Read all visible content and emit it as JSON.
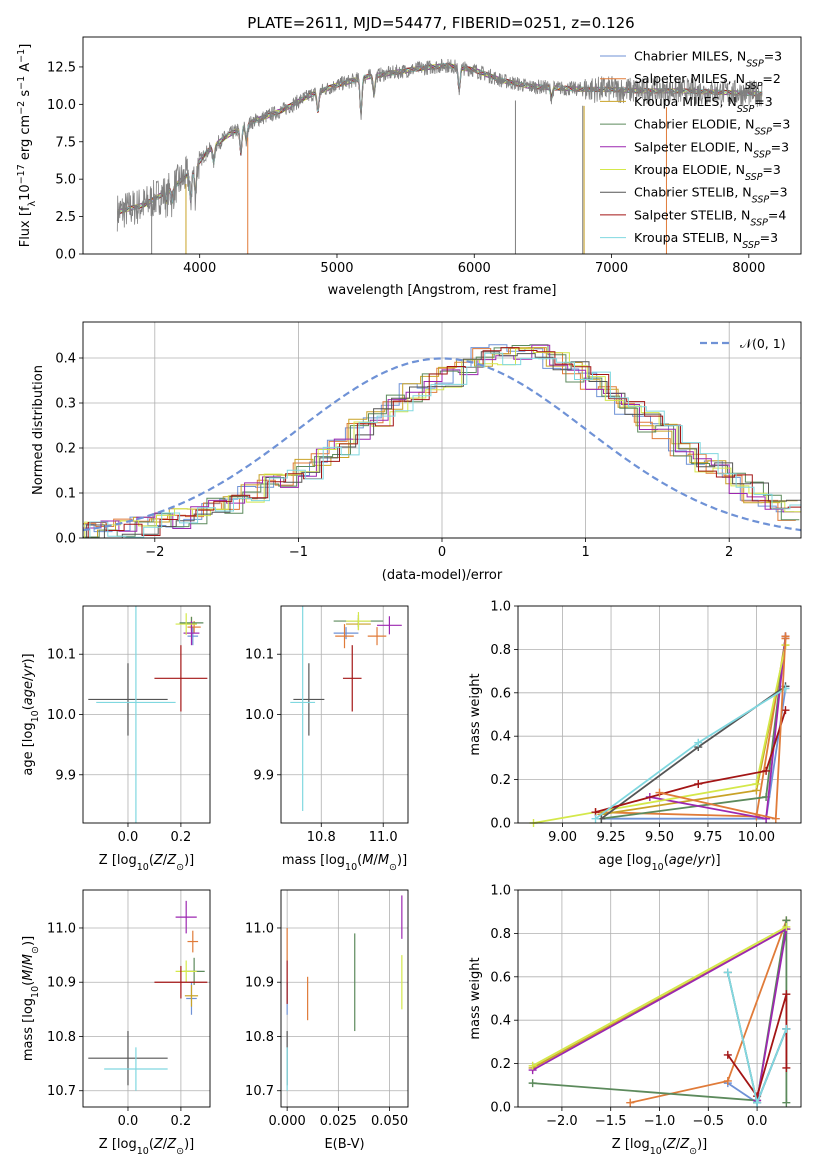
{
  "title": "PLATE=2611, MJD=54477, FIBERID=0251, z=0.126",
  "models": [
    {
      "name": "Chabrier MILES, N$_{SSP}$=3",
      "label_main": "Chabrier MILES, N",
      "label_sub": "SSP",
      "label_tail": "=3",
      "color": "#6f92d6"
    },
    {
      "name": "Salpeter MILES, N$_{SSP}$=2",
      "label_main": "Salpeter MILES, N",
      "label_sub": "SSP",
      "label_tail": "=2",
      "color": "#e07b39"
    },
    {
      "name": "Kroupa MILES, N$_{SSP}$=3",
      "label_main": "Kroupa MILES, N",
      "label_sub": "SSP",
      "label_tail": "=3",
      "color": "#c9a227"
    },
    {
      "name": "Chabrier ELODIE, N$_{SSP}$=3",
      "label_main": "Chabrier ELODIE, N",
      "label_sub": "SSP",
      "label_tail": "=3",
      "color": "#5c8a5c"
    },
    {
      "name": "Salpeter ELODIE, N$_{SSP}$=3",
      "label_main": "Salpeter ELODIE, N",
      "label_sub": "SSP",
      "label_tail": "=3",
      "color": "#9c27b0"
    },
    {
      "name": "Kroupa ELODIE, N$_{SSP}$=3",
      "label_main": "Kroupa ELODIE, N",
      "label_sub": "SSP",
      "label_tail": "=3",
      "color": "#d4e84a"
    },
    {
      "name": "Chabrier STELIB, N$_{SSP}$=3",
      "label_main": "Chabrier STELIB, N",
      "label_sub": "SSP",
      "label_tail": "=3",
      "color": "#555555"
    },
    {
      "name": "Salpeter STELIB, N$_{SSP}$=4",
      "label_main": "Salpeter STELIB, N",
      "label_sub": "SSP",
      "label_tail": "=4",
      "color": "#a31515"
    },
    {
      "name": "Kroupa STELIB, N$_{SSP}$=3",
      "label_main": "Kroupa STELIB, N",
      "label_sub": "SSP",
      "label_tail": "=3",
      "color": "#80d8e0"
    }
  ],
  "chart_data": [
    {
      "id": "spectrum",
      "type": "line",
      "xlabel": "wavelength [Angstrom, rest frame]",
      "ylabel": "Flux [f$_\\lambda$10$^{-17}$ erg cm$^{-2}$ s$^{-1}$ A$^{-1}$]",
      "ylabel_parts": [
        "Flux [f",
        "λ",
        "10",
        "−17",
        " erg cm",
        "−2",
        " s",
        "−1",
        " A",
        "−1",
        "]"
      ],
      "xlim": [
        3150,
        8380
      ],
      "ylim": [
        0,
        14.5
      ],
      "xticks": [
        4000,
        5000,
        6000,
        7000,
        8000
      ],
      "yticks": [
        0.0,
        2.5,
        5.0,
        7.5,
        10.0,
        12.5
      ],
      "data_color": "#808080",
      "continuum": {
        "x": [
          3400,
          3600,
          3800,
          3950,
          4050,
          4200,
          4400,
          4600,
          4800,
          5000,
          5200,
          5400,
          5600,
          5800,
          6000,
          6200,
          6400,
          6600,
          6800,
          7000,
          7200,
          7500,
          7800,
          8100
        ],
        "y": [
          2.8,
          3.3,
          4.4,
          5.6,
          6.8,
          7.9,
          8.9,
          9.6,
          10.6,
          11.3,
          11.8,
          12.1,
          12.4,
          12.6,
          12.3,
          11.6,
          11.2,
          11.1,
          11.0,
          11.0,
          10.9,
          10.9,
          10.8,
          10.7
        ]
      },
      "legend_loc": "upper right",
      "grid": false
    },
    {
      "id": "residuals",
      "type": "histogram",
      "xlabel": "(data-model)/error",
      "ylabel": "Normed distribution",
      "xlim": [
        -2.5,
        2.5
      ],
      "ylim": [
        0,
        0.48
      ],
      "xticks": [
        -2,
        -1,
        0,
        1,
        2
      ],
      "yticks": [
        0.0,
        0.1,
        0.2,
        0.3,
        0.4
      ],
      "bin_edges": [
        -2.5,
        -2.375,
        -2.25,
        -2.125,
        -2.0,
        -1.875,
        -1.75,
        -1.625,
        -1.5,
        -1.375,
        -1.25,
        -1.125,
        -1.0,
        -0.875,
        -0.75,
        -0.625,
        -0.5,
        -0.375,
        -0.25,
        -0.125,
        0.0,
        0.125,
        0.25,
        0.375,
        0.5,
        0.625,
        0.75,
        0.875,
        1.0,
        1.125,
        1.25,
        1.375,
        1.5,
        1.625,
        1.75,
        1.875,
        2.0,
        2.125,
        2.25,
        2.375,
        2.5
      ],
      "hist_reference": [
        0.015,
        0.02,
        0.025,
        0.03,
        0.035,
        0.045,
        0.055,
        0.07,
        0.08,
        0.1,
        0.12,
        0.135,
        0.155,
        0.18,
        0.2,
        0.24,
        0.27,
        0.3,
        0.32,
        0.34,
        0.36,
        0.38,
        0.4,
        0.41,
        0.415,
        0.405,
        0.39,
        0.37,
        0.35,
        0.32,
        0.29,
        0.26,
        0.23,
        0.2,
        0.17,
        0.15,
        0.12,
        0.1,
        0.08,
        0.06
      ],
      "gaussian": {
        "label": "𝒩(0, 1)",
        "color": "#6f92d6",
        "mu": 0,
        "sigma": 1
      },
      "legend_loc": "upper right",
      "grid": true
    },
    {
      "id": "age_vs_Z",
      "type": "errorbar",
      "xlabel": "Z [log$_{10}$(Z/Z$_\\odot$)]",
      "ylabel": "age  [log$_{10}$(age/yr)]",
      "xlim": [
        -0.17,
        0.31
      ],
      "ylim": [
        9.82,
        10.18
      ],
      "xticks": [
        0.0,
        0.2
      ],
      "yticks": [
        9.9,
        10.0,
        10.1
      ],
      "points": [
        {
          "model": 0,
          "x": 0.245,
          "y": 10.13,
          "xerr": 0.02,
          "yerr": 0.015
        },
        {
          "model": 1,
          "x": 0.25,
          "y": 10.145,
          "xerr": 0.025,
          "yerr": 0.01
        },
        {
          "model": 2,
          "x": 0.24,
          "y": 10.15,
          "xerr": 0.02,
          "yerr": 0.012
        },
        {
          "model": 3,
          "x": 0.24,
          "y": 10.152,
          "xerr": 0.045,
          "yerr": 0.01
        },
        {
          "model": 4,
          "x": 0.24,
          "y": 10.135,
          "xerr": 0.03,
          "yerr": 0.02
        },
        {
          "model": 5,
          "x": 0.22,
          "y": 10.15,
          "xerr": 0.04,
          "yerr": 0.018
        },
        {
          "model": 6,
          "x": 0.0,
          "y": 10.025,
          "xerr": 0.15,
          "yerr": 0.06
        },
        {
          "model": 7,
          "x": 0.2,
          "y": 10.06,
          "xerr": 0.1,
          "yerr": 0.055
        },
        {
          "model": 8,
          "x": 0.03,
          "y": 10.02,
          "xerr": 0.15,
          "yerr": 0.2
        }
      ],
      "grid": true
    },
    {
      "id": "age_vs_mass",
      "type": "errorbar",
      "xlabel": "mass [log$_{10}$(M/M$_\\odot$)]",
      "ylabel": "",
      "xlim": [
        10.67,
        11.08
      ],
      "ylim": [
        9.82,
        10.18
      ],
      "xticks": [
        10.8,
        11.0
      ],
      "yticks": [
        9.9,
        10.0,
        10.1
      ],
      "points": [
        {
          "model": 0,
          "x": 10.88,
          "y": 10.135,
          "xerr": 0.04,
          "yerr": 0.01
        },
        {
          "model": 1,
          "x": 10.875,
          "y": 10.13,
          "xerr": 0.03,
          "yerr": 0.02
        },
        {
          "model": 2,
          "x": 10.92,
          "y": 10.15,
          "xerr": 0.04,
          "yerr": 0.01
        },
        {
          "model": 3,
          "x": 10.92,
          "y": 10.155,
          "xerr": 0.08,
          "yerr": 0.01
        },
        {
          "model": 4,
          "x": 11.02,
          "y": 10.148,
          "xerr": 0.04,
          "yerr": 0.015
        },
        {
          "model": 5,
          "x": 10.92,
          "y": 10.155,
          "xerr": 0.04,
          "yerr": 0.015
        },
        {
          "model": 6,
          "x": 10.76,
          "y": 10.025,
          "xerr": 0.05,
          "yerr": 0.06
        },
        {
          "model": 7,
          "x": 10.9,
          "y": 10.06,
          "xerr": 0.03,
          "yerr": 0.055
        },
        {
          "model": 8,
          "x": 10.74,
          "y": 10.02,
          "xerr": 0.04,
          "yerr": 0.18
        },
        {
          "model": 1,
          "x": 10.98,
          "y": 10.13,
          "xerr": 0.03,
          "yerr": 0.015
        }
      ],
      "grid": true
    },
    {
      "id": "massweight_vs_age",
      "type": "line",
      "xlabel": "age  [log$_{10}$(age/yr)]",
      "ylabel": "mass weight",
      "xlim": [
        8.77,
        10.23
      ],
      "ylim": [
        0,
        1.0
      ],
      "xticks": [
        9.0,
        9.25,
        9.5,
        9.75,
        10.0
      ],
      "yticks": [
        0.0,
        0.2,
        0.4,
        0.6,
        0.8,
        1.0
      ],
      "series": [
        {
          "model": 0,
          "x": [
            9.2,
            10.05,
            10.15
          ],
          "y": [
            0.02,
            0.02,
            0.62
          ]
        },
        {
          "model": 1,
          "x": [
            9.17,
            10.0,
            10.15
          ],
          "y": [
            0.05,
            0.03,
            0.85
          ]
        },
        {
          "model": 2,
          "x": [
            9.2,
            10.0,
            10.15
          ],
          "y": [
            0.04,
            0.15,
            0.82
          ]
        },
        {
          "model": 3,
          "x": [
            9.2,
            10.05,
            10.15
          ],
          "y": [
            0.02,
            0.12,
            0.86
          ]
        },
        {
          "model": 4,
          "x": [
            9.45,
            10.05,
            10.15
          ],
          "y": [
            0.12,
            0.02,
            0.86
          ]
        },
        {
          "model": 5,
          "x": [
            8.85,
            10.0,
            10.15
          ],
          "y": [
            0.0,
            0.18,
            0.82
          ]
        },
        {
          "model": 6,
          "x": [
            9.2,
            9.7,
            10.15
          ],
          "y": [
            0.02,
            0.35,
            0.63
          ]
        },
        {
          "model": 7,
          "x": [
            9.17,
            9.7,
            10.05,
            10.15
          ],
          "y": [
            0.05,
            0.18,
            0.24,
            0.52
          ]
        },
        {
          "model": 8,
          "x": [
            9.17,
            9.7,
            10.15
          ],
          "y": [
            0.02,
            0.37,
            0.62
          ]
        },
        {
          "model": 1,
          "x": [
            9.5,
            10.1,
            10.15
          ],
          "y": [
            0.14,
            0.02,
            0.86
          ]
        }
      ],
      "grid": true
    },
    {
      "id": "mass_vs_Z",
      "type": "errorbar",
      "xlabel": "Z [log$_{10}$(Z/Z$_\\odot$)]",
      "ylabel": "mass [log$_{10}$(M/M$_\\odot$)]",
      "xlim": [
        -0.17,
        0.31
      ],
      "ylim": [
        10.67,
        11.07
      ],
      "xticks": [
        0.0,
        0.2
      ],
      "yticks": [
        10.7,
        10.8,
        10.9,
        11.0
      ],
      "points": [
        {
          "model": 0,
          "x": 0.24,
          "y": 10.87,
          "xerr": 0.02,
          "yerr": 0.03
        },
        {
          "model": 1,
          "x": 0.245,
          "y": 10.975,
          "xerr": 0.02,
          "yerr": 0.02
        },
        {
          "model": 2,
          "x": 0.24,
          "y": 10.875,
          "xerr": 0.025,
          "yerr": 0.02
        },
        {
          "model": 3,
          "x": 0.25,
          "y": 10.92,
          "xerr": 0.04,
          "yerr": 0.025
        },
        {
          "model": 4,
          "x": 0.22,
          "y": 11.02,
          "xerr": 0.04,
          "yerr": 0.03
        },
        {
          "model": 5,
          "x": 0.22,
          "y": 10.92,
          "xerr": 0.04,
          "yerr": 0.02
        },
        {
          "model": 6,
          "x": 0.0,
          "y": 10.76,
          "xerr": 0.15,
          "yerr": 0.05
        },
        {
          "model": 7,
          "x": 0.2,
          "y": 10.9,
          "xerr": 0.1,
          "yerr": 0.03
        },
        {
          "model": 8,
          "x": 0.03,
          "y": 10.74,
          "xerr": 0.12,
          "yerr": 0.04
        }
      ],
      "grid": true
    },
    {
      "id": "mass_vs_ebv",
      "type": "errorbar",
      "xlabel": "E(B-V)",
      "ylabel": "",
      "xlim": [
        -0.003,
        0.059
      ],
      "ylim": [
        10.67,
        11.07
      ],
      "xticks": [
        0.0,
        0.025,
        0.05
      ],
      "xtick_labels": [
        "0.000",
        "0.025",
        "0.050"
      ],
      "yticks": [
        10.7,
        10.8,
        10.9,
        11.0
      ],
      "points": [
        {
          "model": 0,
          "x": 0.0,
          "y": 10.87,
          "xerr": 0.0,
          "yerr": 0.03
        },
        {
          "model": 1,
          "x": 0.01,
          "y": 10.87,
          "xerr": 0.0,
          "yerr": 0.04
        },
        {
          "model": 3,
          "x": 0.033,
          "y": 10.9,
          "xerr": 0.0,
          "yerr": 0.09
        },
        {
          "model": 4,
          "x": 0.056,
          "y": 11.02,
          "xerr": 0.0,
          "yerr": 0.04
        },
        {
          "model": 5,
          "x": 0.056,
          "y": 10.9,
          "xerr": 0.0,
          "yerr": 0.05
        },
        {
          "model": 6,
          "x": 0.0,
          "y": 10.76,
          "xerr": 0.0,
          "yerr": 0.05
        },
        {
          "model": 7,
          "x": 0.0,
          "y": 10.9,
          "xerr": 0.0,
          "yerr": 0.04
        },
        {
          "model": 8,
          "x": 0.0,
          "y": 10.74,
          "xerr": 0.0,
          "yerr": 0.04
        },
        {
          "model": 1,
          "x": 0.0,
          "y": 10.97,
          "xerr": 0.0,
          "yerr": 0.03
        }
      ],
      "grid": true
    },
    {
      "id": "massweight_vs_Z",
      "type": "line",
      "xlabel": "Z [log$_{10}$(Z/Z$_\\odot$)]",
      "ylabel": "mass weight",
      "xlim": [
        -2.45,
        0.45
      ],
      "ylim": [
        0,
        1.0
      ],
      "xticks": [
        -2.0,
        -1.5,
        -1.0,
        -0.5,
        0.0
      ],
      "yticks": [
        0.0,
        0.2,
        0.4,
        0.6,
        0.8,
        1.0
      ],
      "series": [
        {
          "model": 0,
          "x": [
            -0.3,
            0.0,
            0.3
          ],
          "y": [
            0.11,
            0.02,
            0.36
          ]
        },
        {
          "model": 1,
          "x": [
            -1.3,
            -0.3,
            0.3
          ],
          "y": [
            0.02,
            0.12,
            0.86
          ]
        },
        {
          "model": 2,
          "x": [
            -2.3,
            0.3
          ],
          "y": [
            0.18,
            0.82
          ]
        },
        {
          "model": 3,
          "x": [
            -2.3,
            0.0,
            0.3,
            0.3
          ],
          "y": [
            0.11,
            0.03,
            0.86,
            0.02
          ]
        },
        {
          "model": 4,
          "x": [
            -2.3,
            0.3,
            0.0
          ],
          "y": [
            0.17,
            0.82,
            0.03
          ]
        },
        {
          "model": 5,
          "x": [
            -2.3,
            0.3
          ],
          "y": [
            0.19,
            0.83
          ]
        },
        {
          "model": 6,
          "x": [
            -0.3,
            0.0,
            0.3
          ],
          "y": [
            0.62,
            0.02,
            0.36
          ]
        },
        {
          "model": 7,
          "x": [
            -0.3,
            0.0,
            0.3,
            0.3
          ],
          "y": [
            0.24,
            0.05,
            0.52,
            0.18
          ]
        },
        {
          "model": 8,
          "x": [
            -0.3,
            0.0,
            0.3
          ],
          "y": [
            0.62,
            0.02,
            0.36
          ]
        }
      ],
      "grid": true
    }
  ]
}
